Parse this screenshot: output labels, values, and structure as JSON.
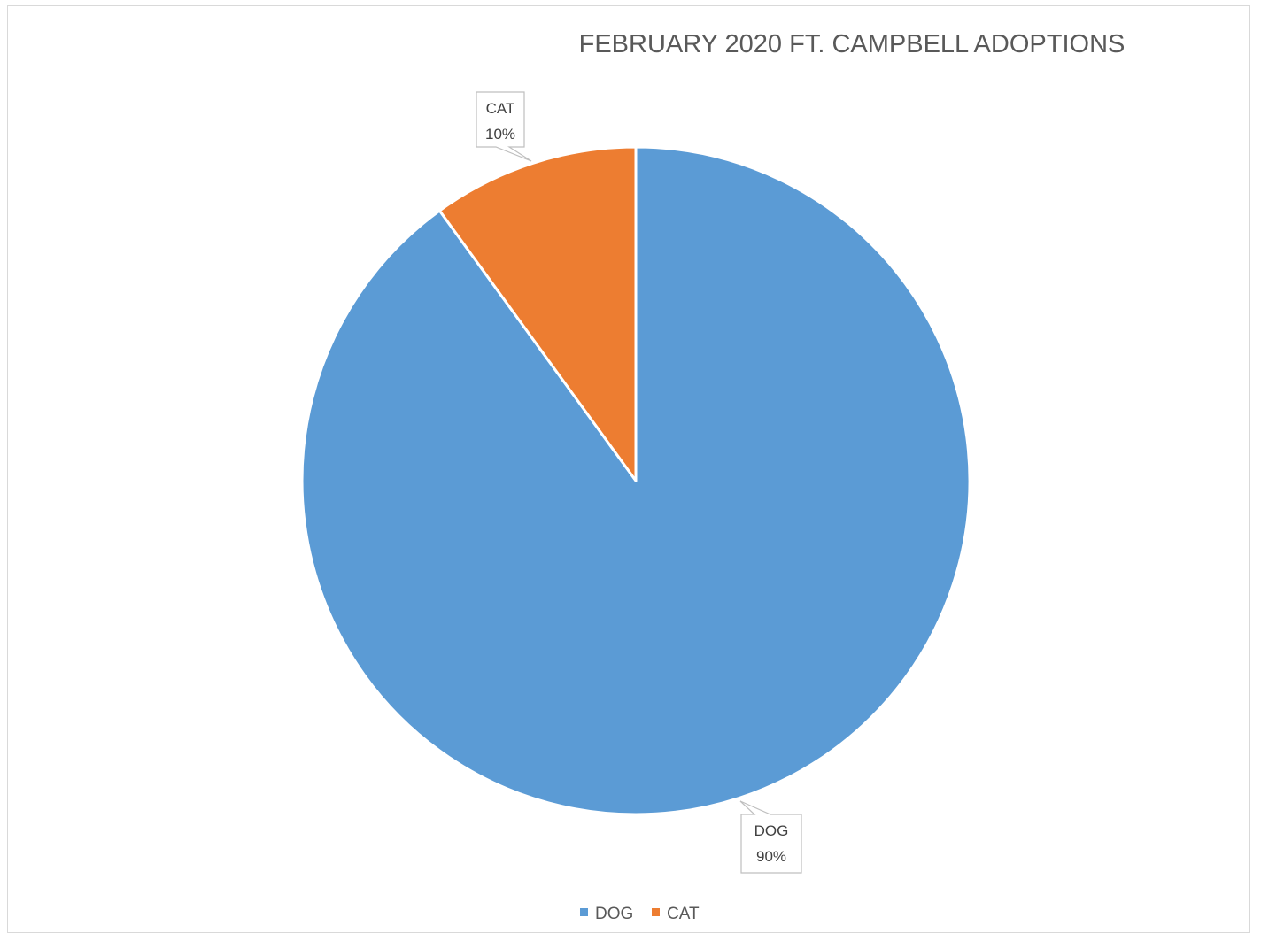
{
  "chart_data": {
    "type": "pie",
    "title": "FEBRUARY 2020 FT. CAMPBELL ADOPTIONS",
    "categories": [
      "DOG",
      "CAT"
    ],
    "values": [
      90,
      10
    ],
    "unit": "%",
    "slices": [
      {
        "name": "DOG",
        "value": 90,
        "label": "DOG",
        "value_label": "90%",
        "color": "#5B9BD5"
      },
      {
        "name": "CAT",
        "value": 10,
        "label": "CAT",
        "value_label": "10%",
        "color": "#ED7D31"
      }
    ],
    "legend": {
      "placement": "bottom",
      "entries": [
        {
          "name": "DOG",
          "color": "#5B9BD5"
        },
        {
          "name": "CAT",
          "color": "#ED7D31"
        }
      ]
    },
    "start_angle": "12 o'clock",
    "direction": "clockwise"
  }
}
